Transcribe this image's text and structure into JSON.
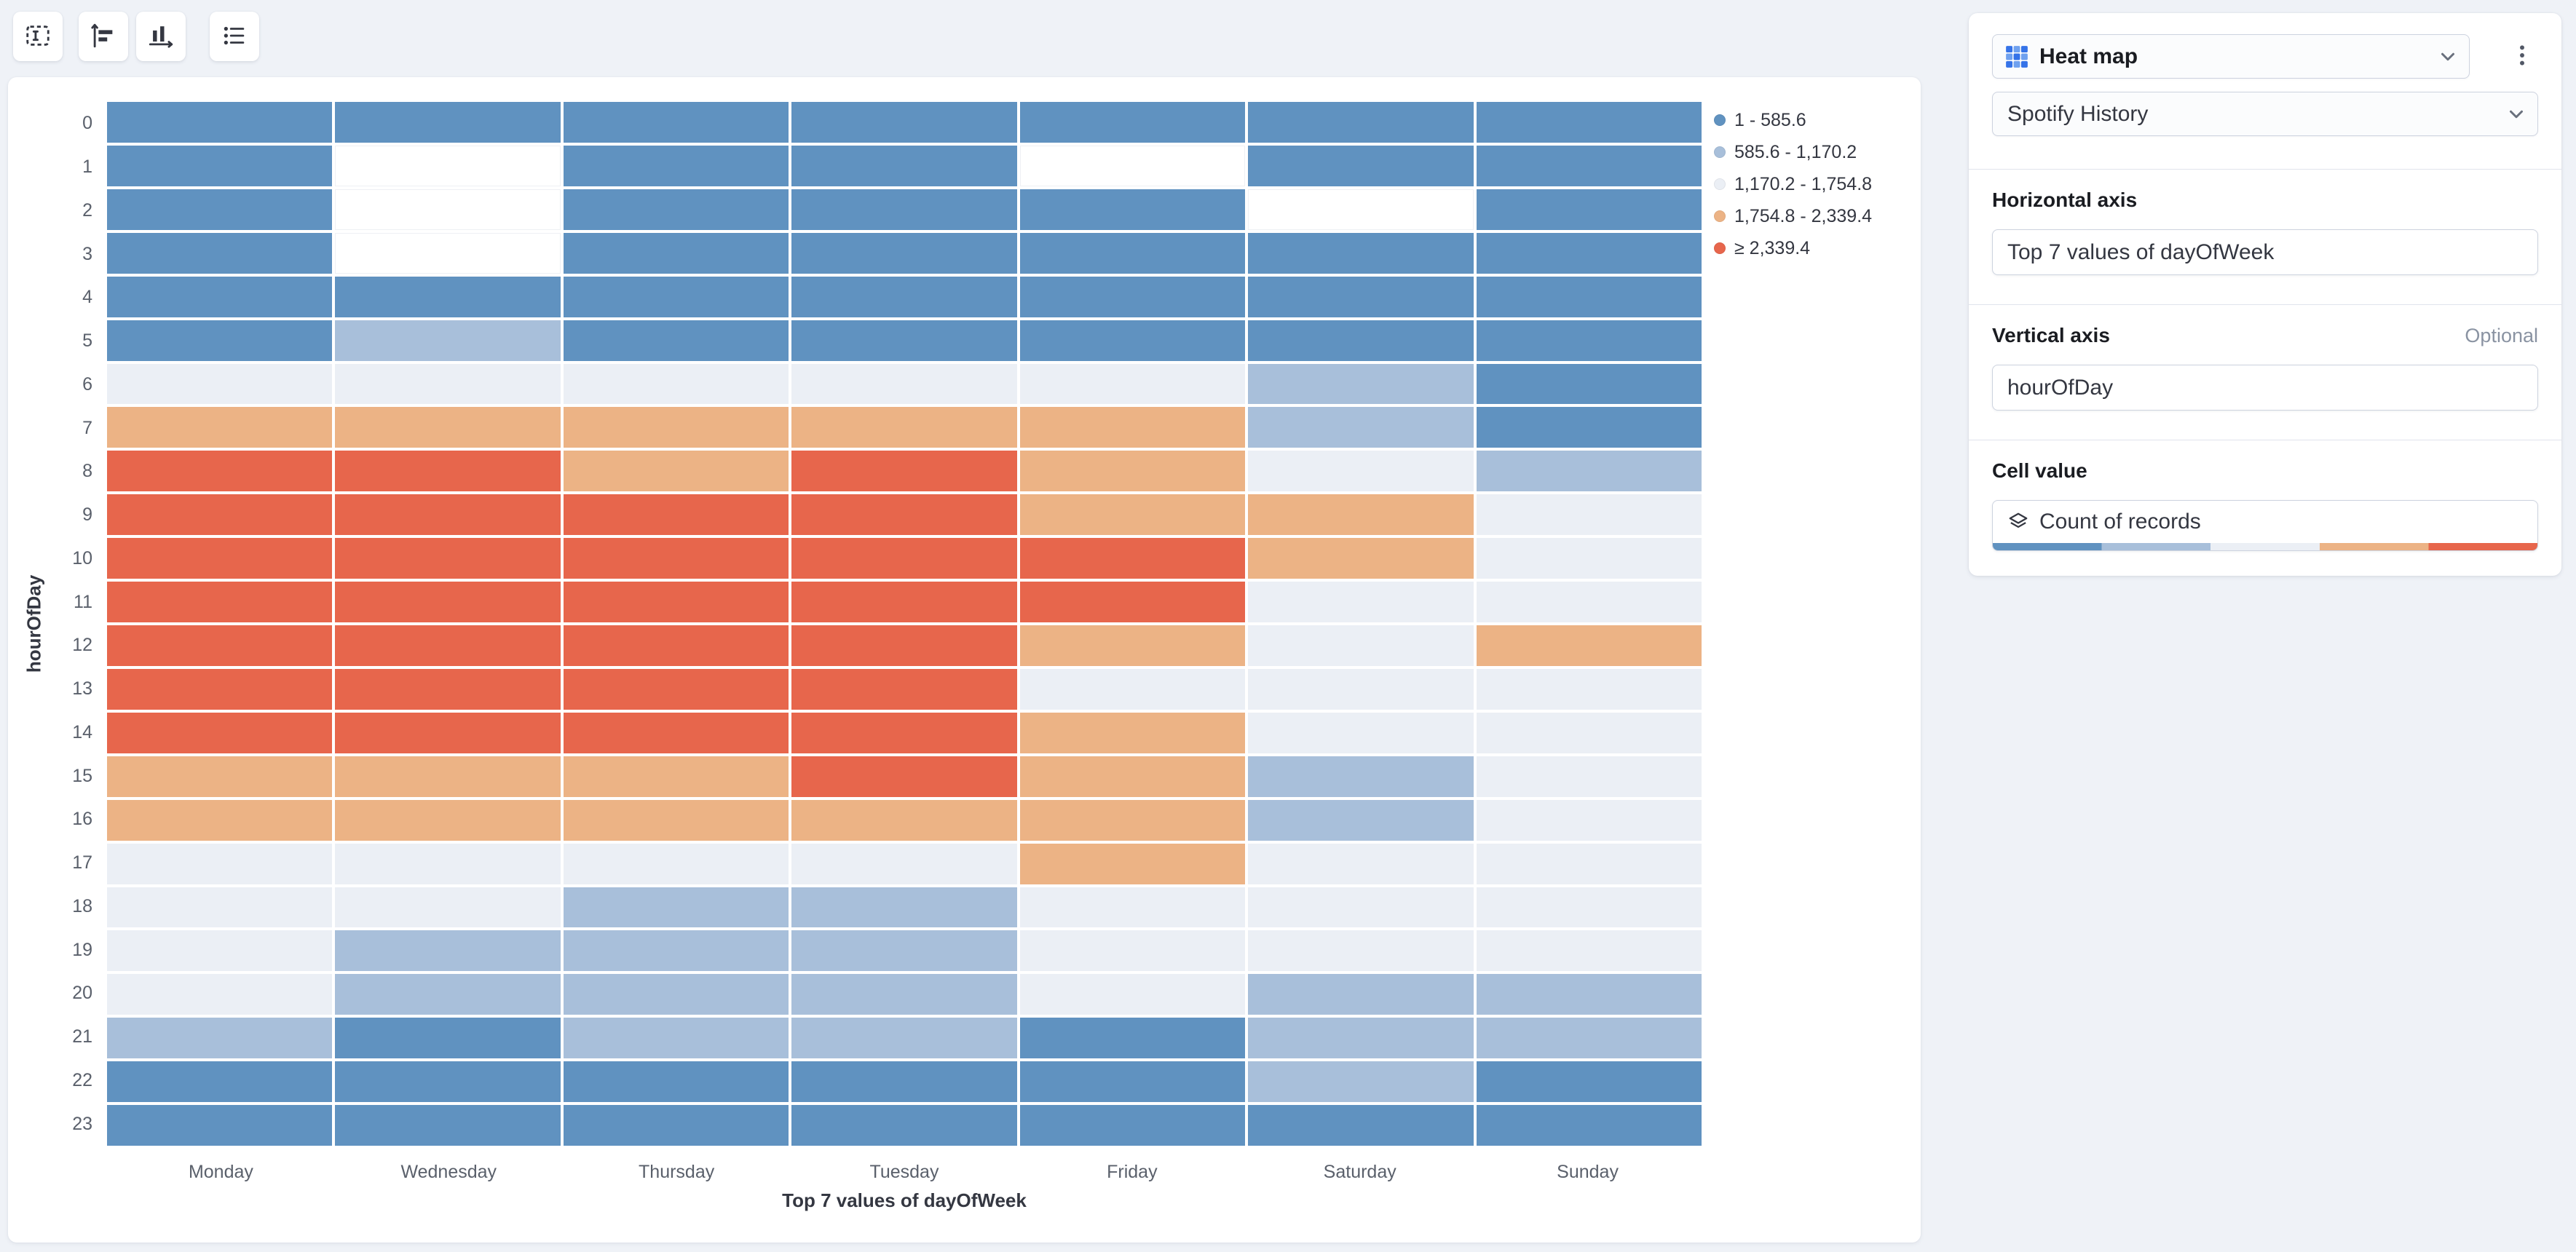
{
  "page": {
    "background": "#eff2f7"
  },
  "toolbar": {
    "buttons": [
      {
        "name": "labels-settings"
      },
      {
        "name": "vertical-axis-settings"
      },
      {
        "name": "horizontal-axis-settings"
      },
      {
        "name": "legend-settings"
      }
    ]
  },
  "config_panel": {
    "chart_type": "Heat map",
    "dataset": "Spotify History",
    "sections": [
      {
        "title": "Horizontal axis",
        "badge": "",
        "field": "Top 7 values of dayOfWeek"
      },
      {
        "title": "Vertical axis",
        "badge": "Optional",
        "field": "hourOfDay"
      },
      {
        "title": "Cell value",
        "badge": "",
        "field": "Count of records"
      }
    ],
    "gradient_colors": [
      "#6092C0",
      "#A8BFDA",
      "#EBEFF5",
      "#ECB385",
      "#E7664C"
    ]
  },
  "chart_data": {
    "type": "heatmap",
    "xlabel": "Top 7 values of dayOfWeek",
    "ylabel": "hourOfDay",
    "x_categories": [
      "Monday",
      "Wednesday",
      "Thursday",
      "Tuesday",
      "Friday",
      "Saturday",
      "Sunday"
    ],
    "y_categories": [
      "0",
      "1",
      "2",
      "3",
      "4",
      "5",
      "6",
      "7",
      "8",
      "9",
      "10",
      "11",
      "12",
      "13",
      "14",
      "15",
      "16",
      "17",
      "18",
      "19",
      "20",
      "21",
      "22",
      "23"
    ],
    "legend": [
      {
        "label": "1 - 585.6",
        "color": "#6092C0"
      },
      {
        "label": "585.6 - 1,170.2",
        "color": "#A8BFDA"
      },
      {
        "label": "1,170.2 - 1,754.8",
        "color": "#EBEFF5"
      },
      {
        "label": "1,754.8 - 2,339.4",
        "color": "#ECB385"
      },
      {
        "label": "≥ 2,339.4",
        "color": "#E7664C"
      }
    ],
    "empty_color": "#FFFFFF",
    "legend_position": "right",
    "cells": [
      [
        1,
        1,
        1,
        1,
        1,
        1,
        1
      ],
      [
        1,
        0,
        1,
        1,
        0,
        1,
        1
      ],
      [
        1,
        0,
        1,
        1,
        1,
        0,
        1
      ],
      [
        1,
        0,
        1,
        1,
        1,
        1,
        1
      ],
      [
        1,
        1,
        1,
        1,
        1,
        1,
        1
      ],
      [
        1,
        2,
        1,
        1,
        1,
        1,
        1
      ],
      [
        3,
        3,
        3,
        3,
        3,
        2,
        1
      ],
      [
        4,
        4,
        4,
        4,
        4,
        2,
        1
      ],
      [
        5,
        5,
        4,
        5,
        4,
        3,
        2
      ],
      [
        5,
        5,
        5,
        5,
        4,
        4,
        3
      ],
      [
        5,
        5,
        5,
        5,
        5,
        4,
        3
      ],
      [
        5,
        5,
        5,
        5,
        5,
        3,
        3
      ],
      [
        5,
        5,
        5,
        5,
        4,
        3,
        4
      ],
      [
        5,
        5,
        5,
        5,
        3,
        3,
        3
      ],
      [
        5,
        5,
        5,
        5,
        4,
        3,
        3
      ],
      [
        4,
        4,
        4,
        5,
        4,
        2,
        3
      ],
      [
        4,
        4,
        4,
        4,
        4,
        2,
        3
      ],
      [
        3,
        3,
        3,
        3,
        4,
        3,
        3
      ],
      [
        3,
        3,
        2,
        2,
        3,
        3,
        3
      ],
      [
        3,
        2,
        2,
        2,
        3,
        3,
        3
      ],
      [
        3,
        2,
        2,
        2,
        3,
        2,
        2
      ],
      [
        2,
        1,
        2,
        2,
        1,
        2,
        2
      ],
      [
        1,
        1,
        1,
        1,
        1,
        2,
        1
      ],
      [
        1,
        1,
        1,
        1,
        1,
        1,
        1
      ]
    ]
  }
}
